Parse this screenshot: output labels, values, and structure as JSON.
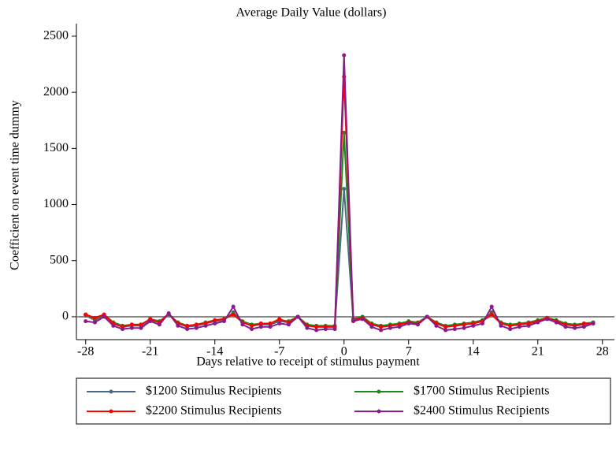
{
  "chart_data": {
    "type": "line",
    "title": "Average Daily Value (dollars)",
    "x_label": "Days relative to receipt of stimulus payment",
    "y_label": "Coefficient on event time dummy",
    "x": [
      -28,
      -27,
      -26,
      -25,
      -24,
      -23,
      -22,
      -21,
      -20,
      -19,
      -18,
      -17,
      -16,
      -15,
      -14,
      -13,
      -12,
      -11,
      -10,
      -9,
      -8,
      -7,
      -6,
      -5,
      -4,
      -3,
      -2,
      -1,
      0,
      1,
      2,
      3,
      4,
      5,
      6,
      7,
      8,
      9,
      10,
      11,
      12,
      13,
      14,
      15,
      16,
      17,
      18,
      19,
      20,
      21,
      22,
      23,
      24,
      25,
      26,
      27
    ],
    "series": [
      {
        "name": "$1200 Stimulus Recipients",
        "color": "#4a6a86",
        "values": [
          10,
          -30,
          10,
          -60,
          -90,
          -80,
          -80,
          -30,
          -50,
          20,
          -60,
          -90,
          -80,
          -60,
          -40,
          -30,
          40,
          -50,
          -80,
          -70,
          -70,
          -40,
          -50,
          0,
          -80,
          -90,
          -90,
          -90,
          1140,
          -30,
          -10,
          -70,
          -90,
          -80,
          -70,
          -50,
          -60,
          0,
          -60,
          -90,
          -80,
          -70,
          -60,
          -40,
          40,
          -60,
          -80,
          -70,
          -60,
          -40,
          -20,
          -40,
          -70,
          -80,
          -70,
          -60
        ]
      },
      {
        "name": "$1700 Stimulus Recipients",
        "color": "#1a8a1a",
        "values": [
          20,
          -20,
          20,
          -50,
          -80,
          -70,
          -70,
          -20,
          -40,
          20,
          -50,
          -80,
          -70,
          -50,
          -30,
          -20,
          30,
          -40,
          -70,
          -60,
          -60,
          -30,
          -40,
          0,
          -70,
          -80,
          -80,
          -80,
          1640,
          -20,
          0,
          -60,
          -80,
          -70,
          -60,
          -40,
          -50,
          0,
          -50,
          -80,
          -70,
          -60,
          -50,
          -30,
          30,
          -50,
          -70,
          -60,
          -50,
          -30,
          -10,
          -30,
          -60,
          -70,
          -60,
          -50
        ]
      },
      {
        "name": "$2200 Stimulus Recipients",
        "color": "#ff0000",
        "values": [
          20,
          -10,
          20,
          -60,
          -90,
          -70,
          -70,
          -20,
          -50,
          30,
          -60,
          -80,
          -70,
          -60,
          -30,
          -20,
          20,
          -50,
          -80,
          -60,
          -60,
          -20,
          -50,
          0,
          -80,
          -90,
          -90,
          -90,
          2140,
          -30,
          -10,
          -70,
          -90,
          -80,
          -70,
          -50,
          -60,
          0,
          -60,
          -90,
          -80,
          -70,
          -60,
          -40,
          20,
          -60,
          -80,
          -70,
          -60,
          -40,
          -10,
          -40,
          -70,
          -80,
          -60,
          -60
        ]
      },
      {
        "name": "$2400 Stimulus Recipients",
        "color": "#8b1a8b",
        "values": [
          -40,
          -50,
          0,
          -80,
          -110,
          -100,
          -100,
          -40,
          -70,
          30,
          -80,
          -110,
          -100,
          -80,
          -60,
          -40,
          90,
          -70,
          -110,
          -90,
          -90,
          -60,
          -70,
          0,
          -100,
          -120,
          -110,
          -110,
          2330,
          -40,
          -20,
          -90,
          -120,
          -100,
          -90,
          -60,
          -70,
          0,
          -80,
          -120,
          -110,
          -100,
          -80,
          -60,
          90,
          -80,
          -110,
          -90,
          -80,
          -50,
          -20,
          -50,
          -90,
          -100,
          -90,
          -60
        ]
      }
    ],
    "xlim": [
      -29,
      29.3
    ],
    "ylim": [
      -204,
      2612
    ],
    "xticks": [
      -28,
      -21,
      -14,
      -7,
      0,
      7,
      14,
      21,
      28
    ],
    "yticks": [
      0,
      500,
      1000,
      1500,
      2000,
      2500
    ],
    "reference_line": 0
  }
}
